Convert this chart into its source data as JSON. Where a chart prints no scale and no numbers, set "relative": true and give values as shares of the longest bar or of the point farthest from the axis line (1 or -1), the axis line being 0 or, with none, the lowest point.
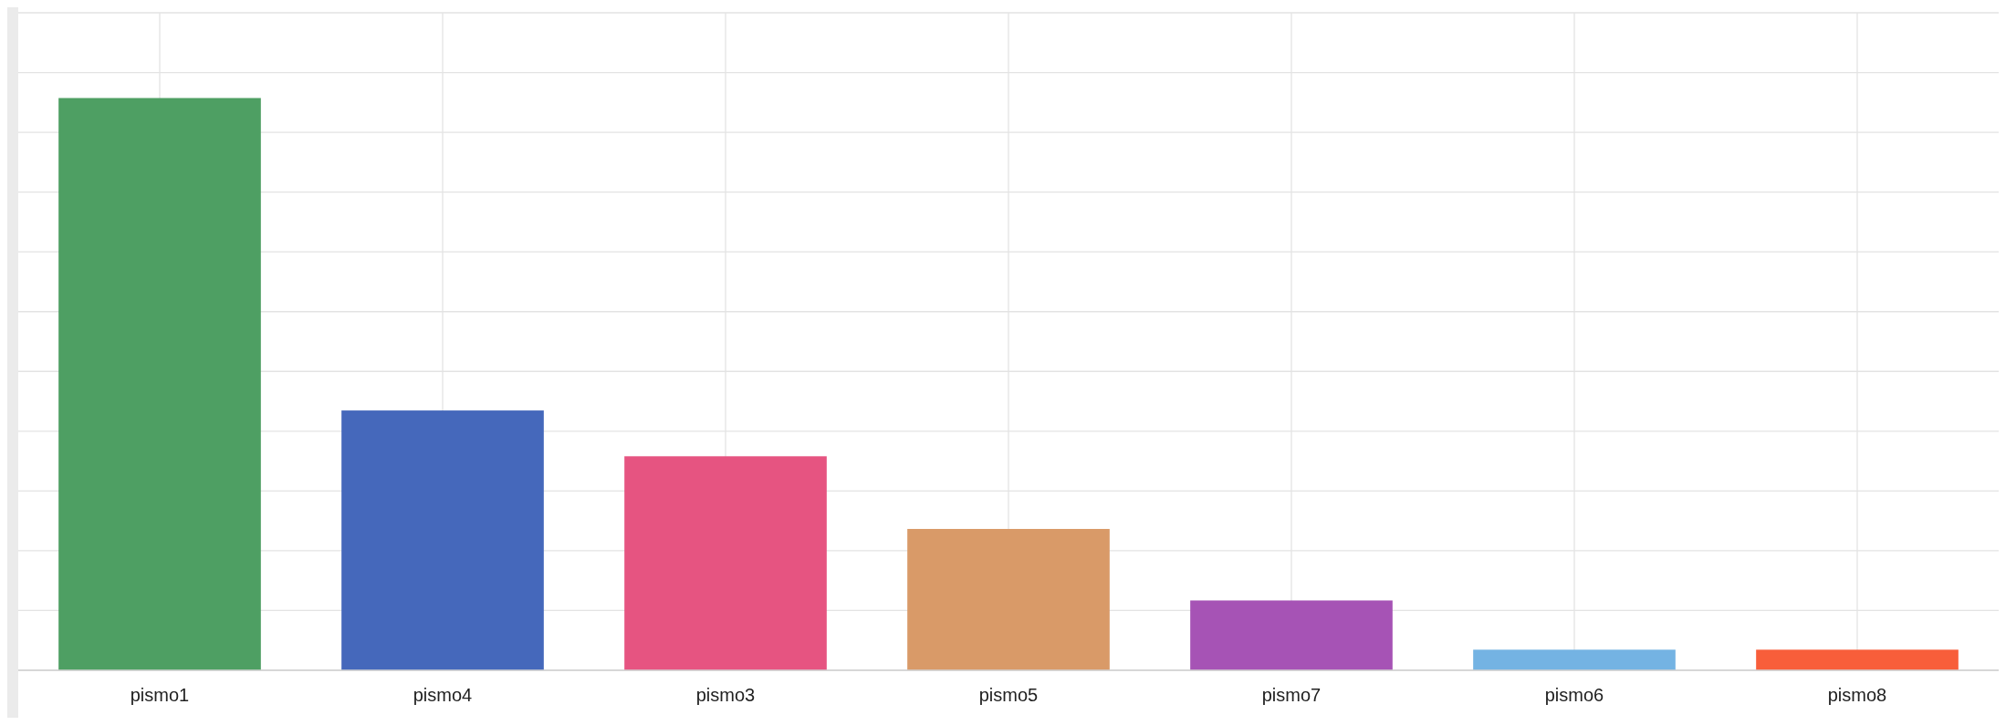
{
  "chart_data": {
    "type": "bar",
    "relative": true,
    "grid": true,
    "categories": [
      "pismo1",
      "pismo4",
      "pismo3",
      "pismo5",
      "pismo7",
      "pismo6",
      "pismo8"
    ],
    "values": [
      1,
      0.454,
      0.374,
      0.247,
      0.122,
      0.036,
      0.036
    ],
    "colors": [
      "#4e9f63",
      "#4568bb",
      "#e65481",
      "#d99a68",
      "#a653b5",
      "#74b3e3",
      "#f85e3a"
    ]
  }
}
